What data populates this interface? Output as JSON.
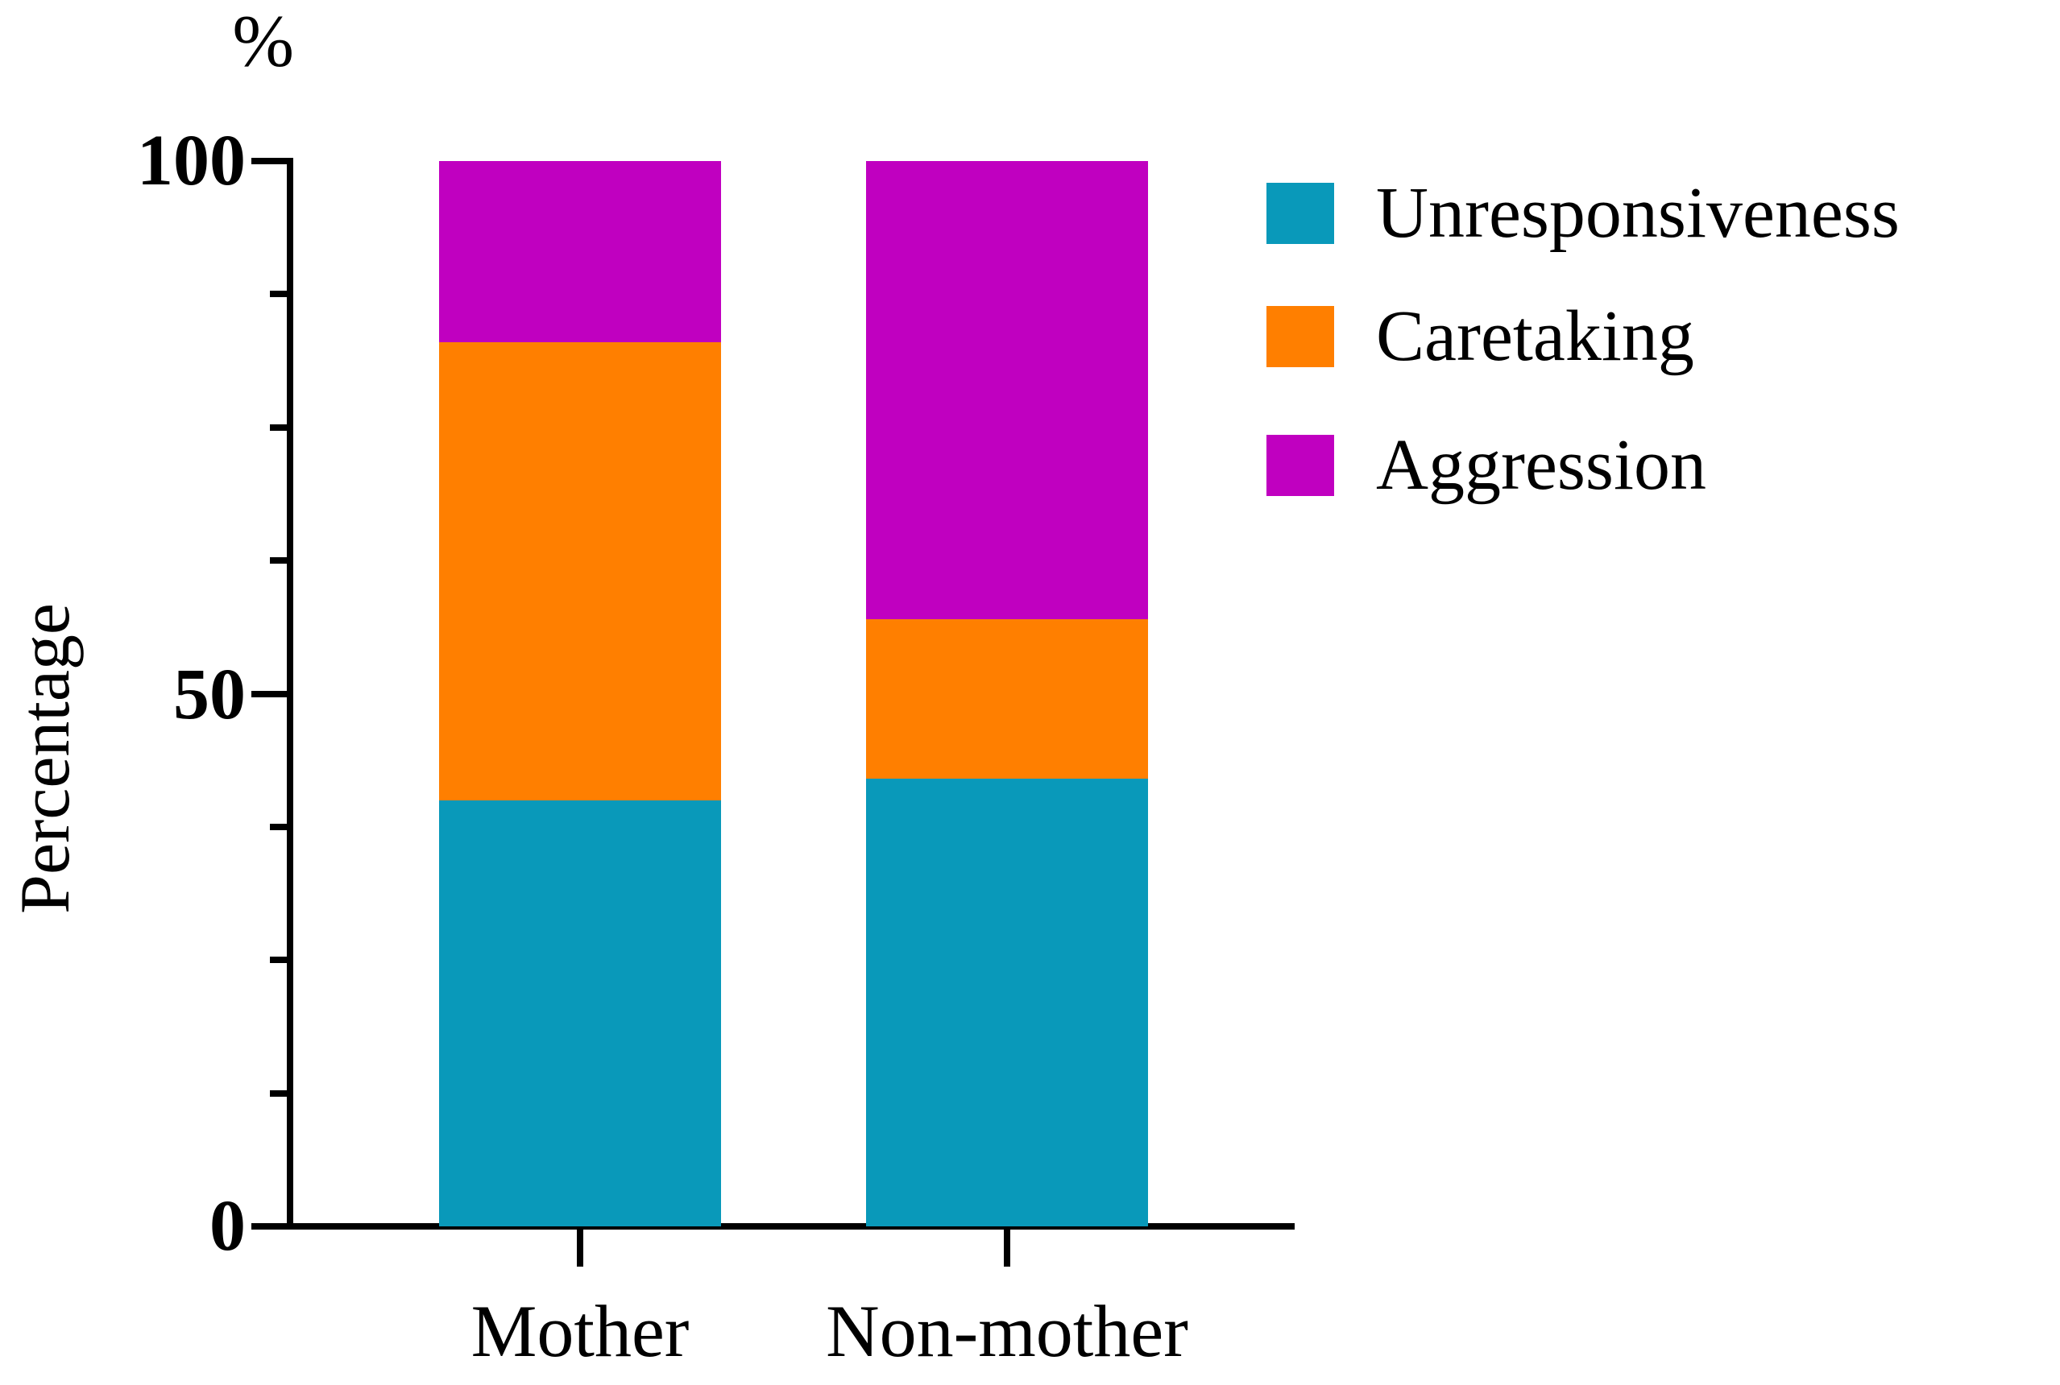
{
  "figure": {
    "y_unit_label": "%"
  },
  "chart_data": {
    "type": "bar",
    "stacked": true,
    "title": "",
    "xlabel": "",
    "ylabel": "Percentage",
    "categories": [
      "Mother",
      "Non-mother"
    ],
    "series": [
      {
        "name": "Unresponsiveness",
        "color": "#0999BA",
        "values": [
          40,
          42
        ]
      },
      {
        "name": "Caretaking",
        "color": "#FF7F00",
        "values": [
          43,
          15
        ]
      },
      {
        "name": "Aggression",
        "color": "#C000C0",
        "values": [
          17,
          43
        ]
      }
    ],
    "ylim": [
      0,
      100
    ],
    "yticks": [
      0,
      50,
      100
    ],
    "ytick_labels": [
      "0",
      "50",
      "100"
    ],
    "minor_ticks": [
      12.5,
      25,
      37.5,
      62.5,
      75,
      87.5
    ],
    "grid": false,
    "legend_position": "right",
    "axis_color": "#000000"
  },
  "legend": {
    "items": [
      {
        "label": "Unresponsiveness"
      },
      {
        "label": "Caretaking"
      },
      {
        "label": "Aggression"
      }
    ]
  }
}
